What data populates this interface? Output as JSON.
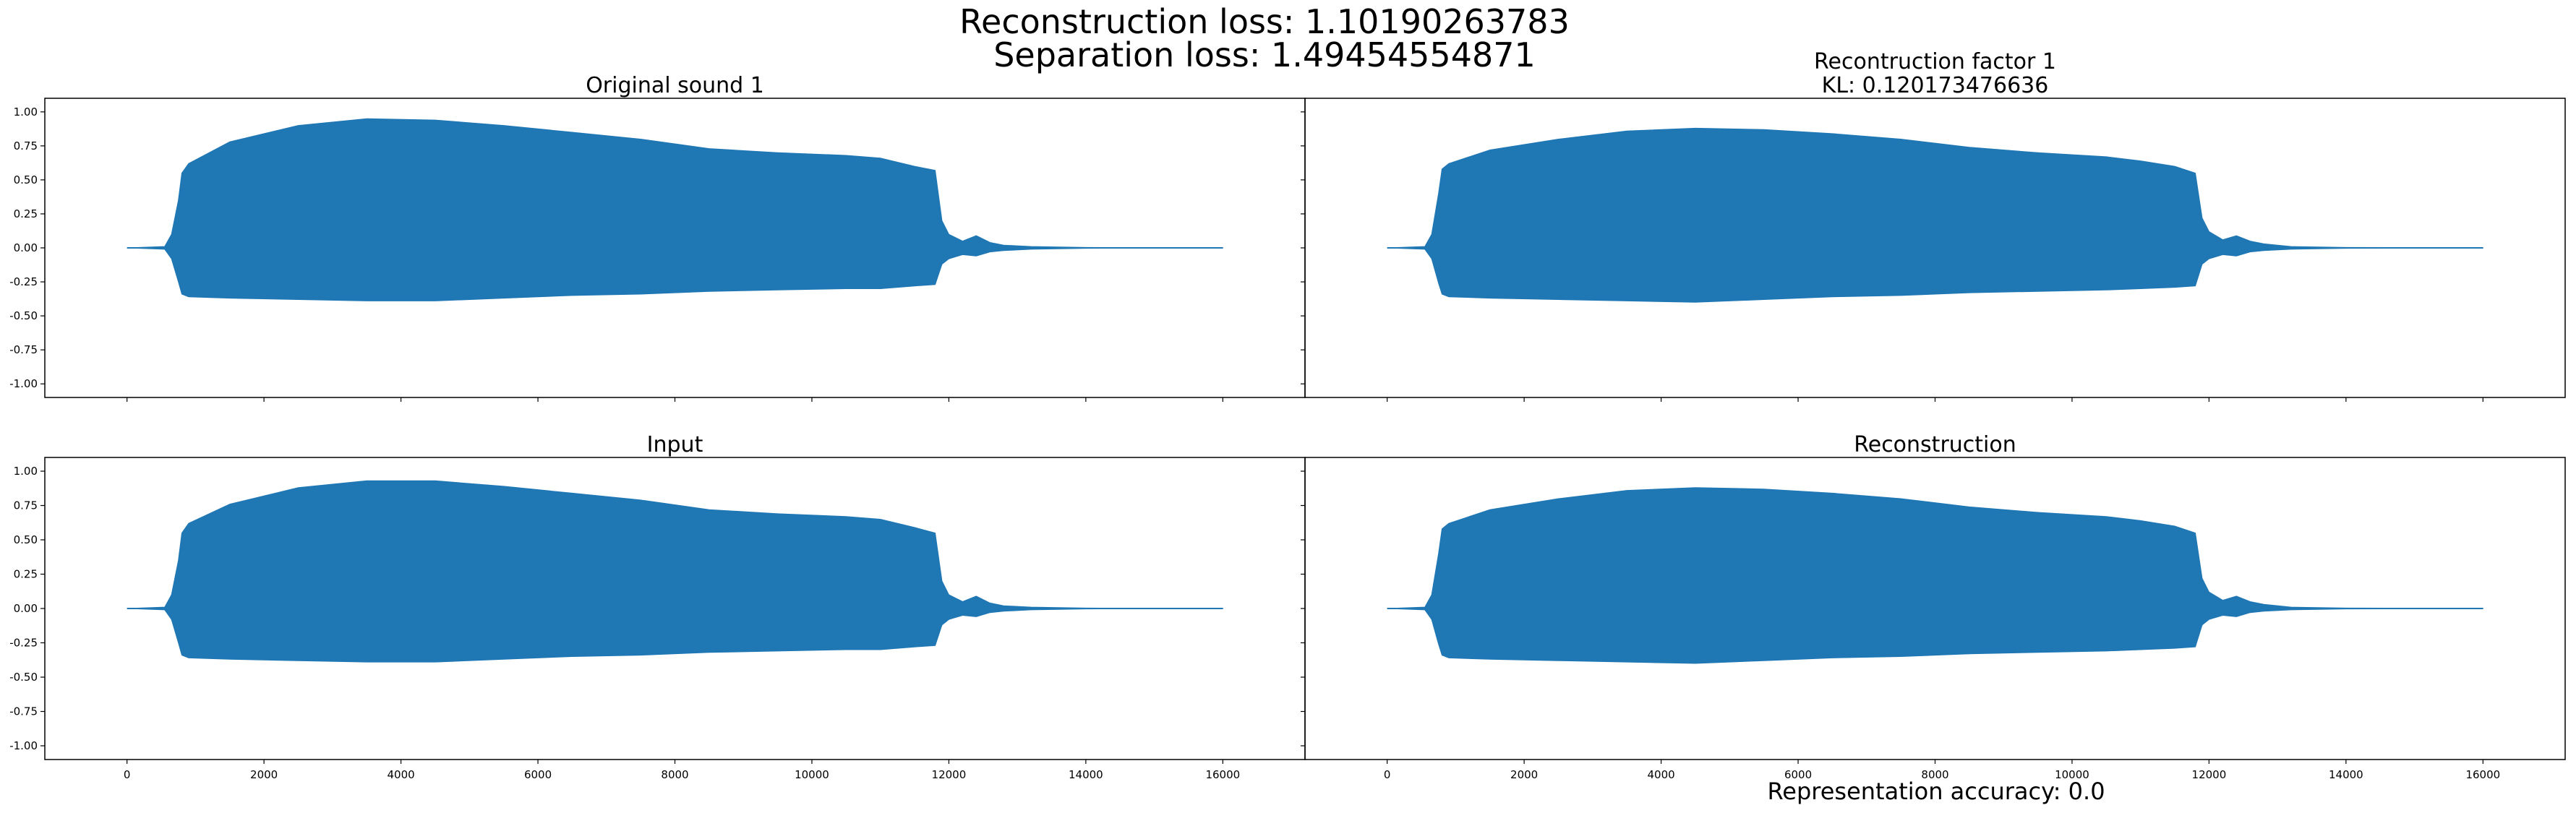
{
  "figure": {
    "suptitle_line1": "Reconstruction loss: 1.10190263783",
    "suptitle_line2": "Separation loss: 1.49454554871",
    "footer_text": "Representation accuracy: 0.0"
  },
  "colors": {
    "waveform": "#1f77b4",
    "axes": "#000000",
    "background": "#ffffff"
  },
  "chart_data": [
    {
      "type": "area",
      "title_lines": [
        "Original sound 1"
      ],
      "xlim": [
        -1200,
        17200
      ],
      "ylim": [
        -1.1,
        1.1
      ],
      "xticks": [
        0,
        2000,
        4000,
        6000,
        8000,
        10000,
        12000,
        14000,
        16000
      ],
      "xtick_labels": [],
      "yticks": [
        1.0,
        0.75,
        0.5,
        0.25,
        0.0,
        -0.25,
        -0.5,
        -0.75,
        -1.0
      ],
      "ytick_labels": [
        "1.00",
        "0.75",
        "0.50",
        "0.25",
        "0.00",
        "-0.25",
        "-0.50",
        "-0.75",
        "-1.00"
      ],
      "envelope": {
        "x": [
          0,
          550,
          650,
          750,
          800,
          900,
          1500,
          2500,
          3500,
          4500,
          5500,
          6500,
          7500,
          8500,
          9500,
          10500,
          11000,
          11500,
          11800,
          11900,
          12000,
          12200,
          12400,
          12600,
          12800,
          13200,
          14000,
          16000
        ],
        "upper": [
          0.0,
          0.01,
          0.1,
          0.35,
          0.55,
          0.62,
          0.78,
          0.9,
          0.95,
          0.94,
          0.9,
          0.85,
          0.8,
          0.73,
          0.7,
          0.68,
          0.66,
          0.6,
          0.57,
          0.2,
          0.1,
          0.05,
          0.09,
          0.04,
          0.02,
          0.01,
          0.003,
          0.001
        ],
        "lower": [
          0.0,
          -0.01,
          -0.08,
          -0.25,
          -0.34,
          -0.36,
          -0.37,
          -0.38,
          -0.39,
          -0.39,
          -0.37,
          -0.35,
          -0.34,
          -0.32,
          -0.31,
          -0.3,
          -0.3,
          -0.28,
          -0.27,
          -0.12,
          -0.08,
          -0.05,
          -0.06,
          -0.03,
          -0.02,
          -0.01,
          -0.003,
          -0.001
        ]
      }
    },
    {
      "type": "area",
      "title_lines": [
        "Recontruction factor 1",
        "KL: 0.120173476636"
      ],
      "xlim": [
        -1200,
        17200
      ],
      "ylim": [
        -1.1,
        1.1
      ],
      "xticks": [
        0,
        2000,
        4000,
        6000,
        8000,
        10000,
        12000,
        14000,
        16000
      ],
      "xtick_labels": [],
      "yticks": [
        1.0,
        0.75,
        0.5,
        0.25,
        0.0,
        -0.25,
        -0.5,
        -0.75,
        -1.0
      ],
      "ytick_labels": [],
      "envelope": {
        "x": [
          0,
          550,
          650,
          750,
          800,
          900,
          1500,
          2500,
          3500,
          4500,
          5500,
          6500,
          7500,
          8500,
          9500,
          10500,
          11000,
          11500,
          11800,
          11900,
          12000,
          12200,
          12400,
          12600,
          12800,
          13200,
          14000,
          16000
        ],
        "upper": [
          0.0,
          0.01,
          0.1,
          0.4,
          0.58,
          0.62,
          0.72,
          0.8,
          0.86,
          0.88,
          0.87,
          0.84,
          0.8,
          0.74,
          0.7,
          0.67,
          0.64,
          0.6,
          0.55,
          0.22,
          0.12,
          0.06,
          0.09,
          0.05,
          0.03,
          0.01,
          0.003,
          0.001
        ],
        "lower": [
          0.0,
          -0.01,
          -0.08,
          -0.26,
          -0.34,
          -0.36,
          -0.37,
          -0.38,
          -0.39,
          -0.4,
          -0.38,
          -0.36,
          -0.35,
          -0.33,
          -0.32,
          -0.31,
          -0.3,
          -0.29,
          -0.28,
          -0.12,
          -0.08,
          -0.05,
          -0.06,
          -0.03,
          -0.02,
          -0.01,
          -0.003,
          -0.001
        ]
      }
    },
    {
      "type": "area",
      "title_lines": [
        "Input"
      ],
      "xlim": [
        -1200,
        17200
      ],
      "ylim": [
        -1.1,
        1.1
      ],
      "xticks": [
        0,
        2000,
        4000,
        6000,
        8000,
        10000,
        12000,
        14000,
        16000
      ],
      "xtick_labels": [
        "0",
        "2000",
        "4000",
        "6000",
        "8000",
        "10000",
        "12000",
        "14000",
        "16000"
      ],
      "yticks": [
        1.0,
        0.75,
        0.5,
        0.25,
        0.0,
        -0.25,
        -0.5,
        -0.75,
        -1.0
      ],
      "ytick_labels": [
        "1.00",
        "0.75",
        "0.50",
        "0.25",
        "0.00",
        "-0.25",
        "-0.50",
        "-0.75",
        "-1.00"
      ],
      "envelope": {
        "x": [
          0,
          550,
          650,
          750,
          800,
          900,
          1500,
          2500,
          3500,
          4500,
          5500,
          6500,
          7500,
          8500,
          9500,
          10500,
          11000,
          11500,
          11800,
          11900,
          12000,
          12200,
          12400,
          12600,
          12800,
          13200,
          14000,
          16000
        ],
        "upper": [
          0.0,
          0.01,
          0.1,
          0.35,
          0.55,
          0.62,
          0.76,
          0.88,
          0.93,
          0.93,
          0.89,
          0.84,
          0.79,
          0.72,
          0.69,
          0.67,
          0.65,
          0.59,
          0.55,
          0.2,
          0.1,
          0.05,
          0.09,
          0.04,
          0.02,
          0.01,
          0.003,
          0.001
        ],
        "lower": [
          0.0,
          -0.01,
          -0.08,
          -0.25,
          -0.34,
          -0.36,
          -0.37,
          -0.38,
          -0.39,
          -0.39,
          -0.37,
          -0.35,
          -0.34,
          -0.32,
          -0.31,
          -0.3,
          -0.3,
          -0.28,
          -0.27,
          -0.12,
          -0.08,
          -0.05,
          -0.06,
          -0.03,
          -0.02,
          -0.01,
          -0.003,
          -0.001
        ]
      }
    },
    {
      "type": "area",
      "title_lines": [
        "Reconstruction"
      ],
      "xlim": [
        -1200,
        17200
      ],
      "ylim": [
        -1.1,
        1.1
      ],
      "xticks": [
        0,
        2000,
        4000,
        6000,
        8000,
        10000,
        12000,
        14000,
        16000
      ],
      "xtick_labels": [
        "0",
        "2000",
        "4000",
        "6000",
        "8000",
        "10000",
        "12000",
        "14000",
        "16000"
      ],
      "yticks": [
        1.0,
        0.75,
        0.5,
        0.25,
        0.0,
        -0.25,
        -0.5,
        -0.75,
        -1.0
      ],
      "ytick_labels": [],
      "envelope": {
        "x": [
          0,
          550,
          650,
          750,
          800,
          900,
          1500,
          2500,
          3500,
          4500,
          5500,
          6500,
          7500,
          8500,
          9500,
          10500,
          11000,
          11500,
          11800,
          11900,
          12000,
          12200,
          12400,
          12600,
          12800,
          13200,
          14000,
          16000
        ],
        "upper": [
          0.0,
          0.01,
          0.1,
          0.4,
          0.58,
          0.62,
          0.72,
          0.8,
          0.86,
          0.88,
          0.87,
          0.84,
          0.8,
          0.74,
          0.7,
          0.67,
          0.64,
          0.6,
          0.55,
          0.22,
          0.12,
          0.06,
          0.09,
          0.05,
          0.03,
          0.01,
          0.003,
          0.001
        ],
        "lower": [
          0.0,
          -0.01,
          -0.08,
          -0.26,
          -0.34,
          -0.36,
          -0.37,
          -0.38,
          -0.39,
          -0.4,
          -0.38,
          -0.36,
          -0.35,
          -0.33,
          -0.32,
          -0.31,
          -0.3,
          -0.29,
          -0.28,
          -0.12,
          -0.08,
          -0.05,
          -0.06,
          -0.03,
          -0.02,
          -0.01,
          -0.003,
          -0.001
        ]
      }
    }
  ]
}
